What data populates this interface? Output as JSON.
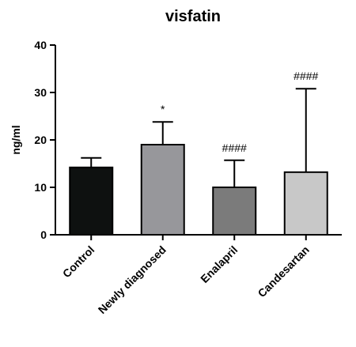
{
  "chart_data": {
    "type": "bar",
    "title": "visfatin",
    "xlabel": "",
    "ylabel": "ng/ml",
    "ylim": [
      0,
      40
    ],
    "yticks": [
      0,
      10,
      20,
      30,
      40
    ],
    "grid": false,
    "categories": [
      "Control",
      "Newly diagnosed",
      "Enalapril",
      "Candesartan"
    ],
    "values": [
      14.2,
      19.0,
      10.0,
      13.2
    ],
    "errors": [
      2.0,
      4.8,
      5.7,
      17.6
    ],
    "annotations": [
      "",
      "*",
      "####",
      "####"
    ],
    "colors": [
      "#0e1110",
      "#97979b",
      "#7b7b7b",
      "#c8c8c8"
    ]
  }
}
